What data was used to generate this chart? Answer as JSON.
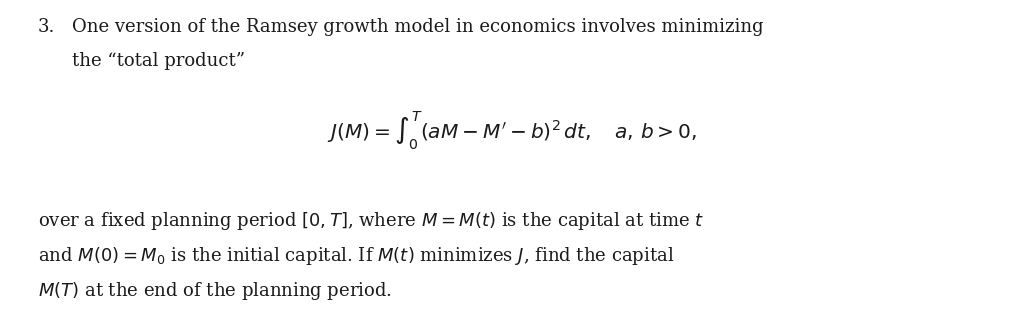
{
  "background_color": "#ffffff",
  "text_color": "#1a1a1a",
  "fig_width": 10.24,
  "fig_height": 3.29,
  "dpi": 100,
  "num_label": "3.",
  "line1_text": "One version of the Ramsey growth model in economics involves minimizing",
  "line2_text": "the “total product”",
  "formula": "J(M) = \\int_0^T (aM - M' - b)^2\\,dt, \\quad a,\\, b > 0,",
  "line3_text": "over a fixed planning period $[0, T]$, where $M = M(t)$ is the capital at time $t$",
  "line4_text": "and $M(0) = M_0$ is the initial capital. If $M(t)$ minimizes $J$, find the capital",
  "line5_text": "$M(T)$ at the end of the planning period.",
  "fontsize_body": 13.0,
  "fontsize_formula": 14.5
}
